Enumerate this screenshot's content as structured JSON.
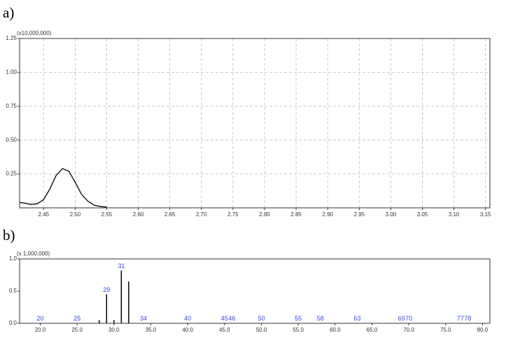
{
  "chart_data": [
    {
      "type": "line",
      "panel_label": "a)",
      "multiplier": "(x10,000,000)",
      "x": [
        2.412,
        2.42,
        2.43,
        2.44,
        2.45,
        2.46,
        2.47,
        2.48,
        2.49,
        2.5,
        2.51,
        2.52,
        2.53,
        2.54,
        2.55
      ],
      "values": [
        0.04,
        0.035,
        0.025,
        0.03,
        0.06,
        0.14,
        0.24,
        0.29,
        0.27,
        0.19,
        0.1,
        0.05,
        0.02,
        0.01,
        0.005
      ],
      "color": "#000000",
      "grid": true,
      "xlim": [
        2.412,
        3.157
      ],
      "ylim": [
        0,
        1.25
      ],
      "xticks": [
        2.45,
        {
          "value": 2.5,
          "label": "2.50"
        },
        2.55,
        {
          "value": 2.6,
          "label": "2.60"
        },
        2.65,
        {
          "value": 2.7,
          "label": "2.70"
        },
        2.75,
        {
          "value": 2.8,
          "label": "2.80"
        },
        2.85,
        {
          "value": 2.9,
          "label": "2.90"
        },
        2.95,
        {
          "value": 3.0,
          "label": "3.00"
        },
        3.05,
        {
          "value": 3.1,
          "label": "3.10"
        },
        3.15
      ],
      "yticks": [
        0.25,
        {
          "value": 0.5,
          "label": "0.50"
        },
        0.75,
        {
          "value": 1.0,
          "label": "1.00"
        },
        1.25
      ]
    },
    {
      "type": "stem",
      "panel_label": "b)",
      "multiplier": "(x 1,000,000)",
      "x": [
        20,
        25,
        28,
        29,
        30,
        31,
        32,
        34,
        40,
        45,
        46,
        50,
        55,
        58,
        63,
        69,
        70,
        77,
        78
      ],
      "values": [
        0.005,
        0.005,
        0.05,
        0.45,
        0.05,
        0.82,
        0.65,
        0.005,
        0.005,
        0.005,
        0.005,
        0.005,
        0.005,
        0.005,
        0.005,
        0.005,
        0.005,
        0.005,
        0.005
      ],
      "labels": [
        20,
        25,
        null,
        29,
        null,
        31,
        null,
        34,
        40,
        45,
        46,
        50,
        55,
        58,
        63,
        69,
        70,
        77,
        78
      ],
      "color": "#000000",
      "grid": false,
      "xlim": [
        17.2,
        81
      ],
      "ylim": [
        0,
        1.0
      ],
      "xticks": [
        {
          "value": 20,
          "label": "20.0"
        },
        {
          "value": 25,
          "label": "25.0"
        },
        {
          "value": 30,
          "label": "30.0"
        },
        {
          "value": 35,
          "label": "35.0"
        },
        {
          "value": 40,
          "label": "40.0"
        },
        {
          "value": 45,
          "label": "45.0"
        },
        {
          "value": 50,
          "label": "50.0"
        },
        {
          "value": 55,
          "label": "55.0"
        },
        {
          "value": 60,
          "label": "60.0"
        },
        {
          "value": 65,
          "label": "65.0"
        },
        {
          "value": 70,
          "label": "70.0"
        },
        {
          "value": 75,
          "label": "75.0"
        },
        {
          "value": 80,
          "label": "80.0"
        }
      ],
      "yticks": [
        {
          "value": 0,
          "label": "0.0"
        },
        0.5,
        {
          "value": 1.0,
          "label": "1.0"
        }
      ]
    }
  ]
}
